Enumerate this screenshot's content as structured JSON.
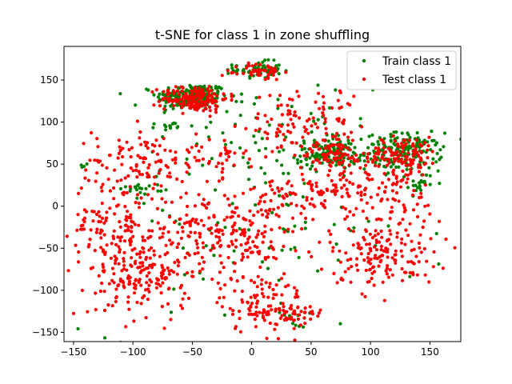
{
  "chart_data": {
    "type": "scatter",
    "title": "t-SNE for class 1 in zone shuffling",
    "xlabel": "",
    "ylabel": "",
    "xlim": [
      -158,
      176
    ],
    "ylim": [
      -161,
      190
    ],
    "xticks": [
      -150,
      -100,
      -50,
      0,
      50,
      100,
      150
    ],
    "yticks": [
      -150,
      -100,
      -50,
      0,
      50,
      100,
      150
    ],
    "grid": false,
    "legend_position": "top-right",
    "series": [
      {
        "name": "Train class 1",
        "color": "#008000",
        "marker": "dot",
        "clusters": [
          {
            "cx": -50,
            "cy": 130,
            "sx": 15,
            "sy": 8,
            "n": 220
          },
          {
            "cx": 5,
            "cy": 162,
            "sx": 10,
            "sy": 5,
            "n": 70
          },
          {
            "cx": 65,
            "cy": 62,
            "sx": 14,
            "sy": 9,
            "n": 130
          },
          {
            "cx": 128,
            "cy": 65,
            "sx": 16,
            "sy": 11,
            "n": 170
          },
          {
            "cx": 143,
            "cy": 28,
            "sx": 5,
            "sy": 6,
            "n": 20
          },
          {
            "cx": -141,
            "cy": 48,
            "sx": 2,
            "sy": 2,
            "n": 4
          },
          {
            "cx": -92,
            "cy": 21,
            "sx": 9,
            "sy": 3,
            "n": 20
          },
          {
            "cx": -68,
            "cy": 96,
            "sx": 6,
            "sy": 3,
            "n": 12
          },
          {
            "cx": 38,
            "cy": -136,
            "sx": 5,
            "sy": 4,
            "n": 8
          },
          {
            "cx": 10,
            "cy": 75,
            "sx": 45,
            "sy": 40,
            "n": 60
          },
          {
            "cx": 0,
            "cy": -30,
            "sx": 70,
            "sy": 60,
            "n": 90
          }
        ]
      },
      {
        "name": "Test class 1",
        "color": "#ff0000",
        "marker": "dot",
        "clusters": [
          {
            "cx": -48,
            "cy": 128,
            "sx": 14,
            "sy": 8,
            "n": 160
          },
          {
            "cx": 8,
            "cy": 160,
            "sx": 9,
            "sy": 5,
            "n": 50
          },
          {
            "cx": 68,
            "cy": 62,
            "sx": 13,
            "sy": 8,
            "n": 70
          },
          {
            "cx": 128,
            "cy": 62,
            "sx": 15,
            "sy": 10,
            "n": 110
          },
          {
            "cx": -90,
            "cy": 55,
            "sx": 22,
            "sy": 20,
            "n": 90
          },
          {
            "cx": -115,
            "cy": -30,
            "sx": 20,
            "sy": 40,
            "n": 190
          },
          {
            "cx": -85,
            "cy": -85,
            "sx": 18,
            "sy": 22,
            "n": 130
          },
          {
            "cx": -40,
            "cy": -30,
            "sx": 20,
            "sy": 25,
            "n": 120
          },
          {
            "cx": 10,
            "cy": -115,
            "sx": 18,
            "sy": 18,
            "n": 120
          },
          {
            "cx": 40,
            "cy": -130,
            "sx": 10,
            "sy": 8,
            "n": 25
          },
          {
            "cx": 40,
            "cy": 10,
            "sx": 20,
            "sy": 20,
            "n": 80
          },
          {
            "cx": 110,
            "cy": -60,
            "sx": 22,
            "sy": 18,
            "n": 140
          },
          {
            "cx": 120,
            "cy": 10,
            "sx": 20,
            "sy": 25,
            "n": 90
          },
          {
            "cx": 30,
            "cy": 100,
            "sx": 15,
            "sy": 20,
            "n": 60
          },
          {
            "cx": 70,
            "cy": 100,
            "sx": 15,
            "sy": 25,
            "n": 50
          },
          {
            "cx": -30,
            "cy": 60,
            "sx": 12,
            "sy": 12,
            "n": 40
          },
          {
            "cx": 0,
            "cy": -40,
            "sx": 25,
            "sy": 25,
            "n": 80
          },
          {
            "cx": 80,
            "cy": 20,
            "sx": 15,
            "sy": 20,
            "n": 60
          }
        ]
      }
    ]
  }
}
